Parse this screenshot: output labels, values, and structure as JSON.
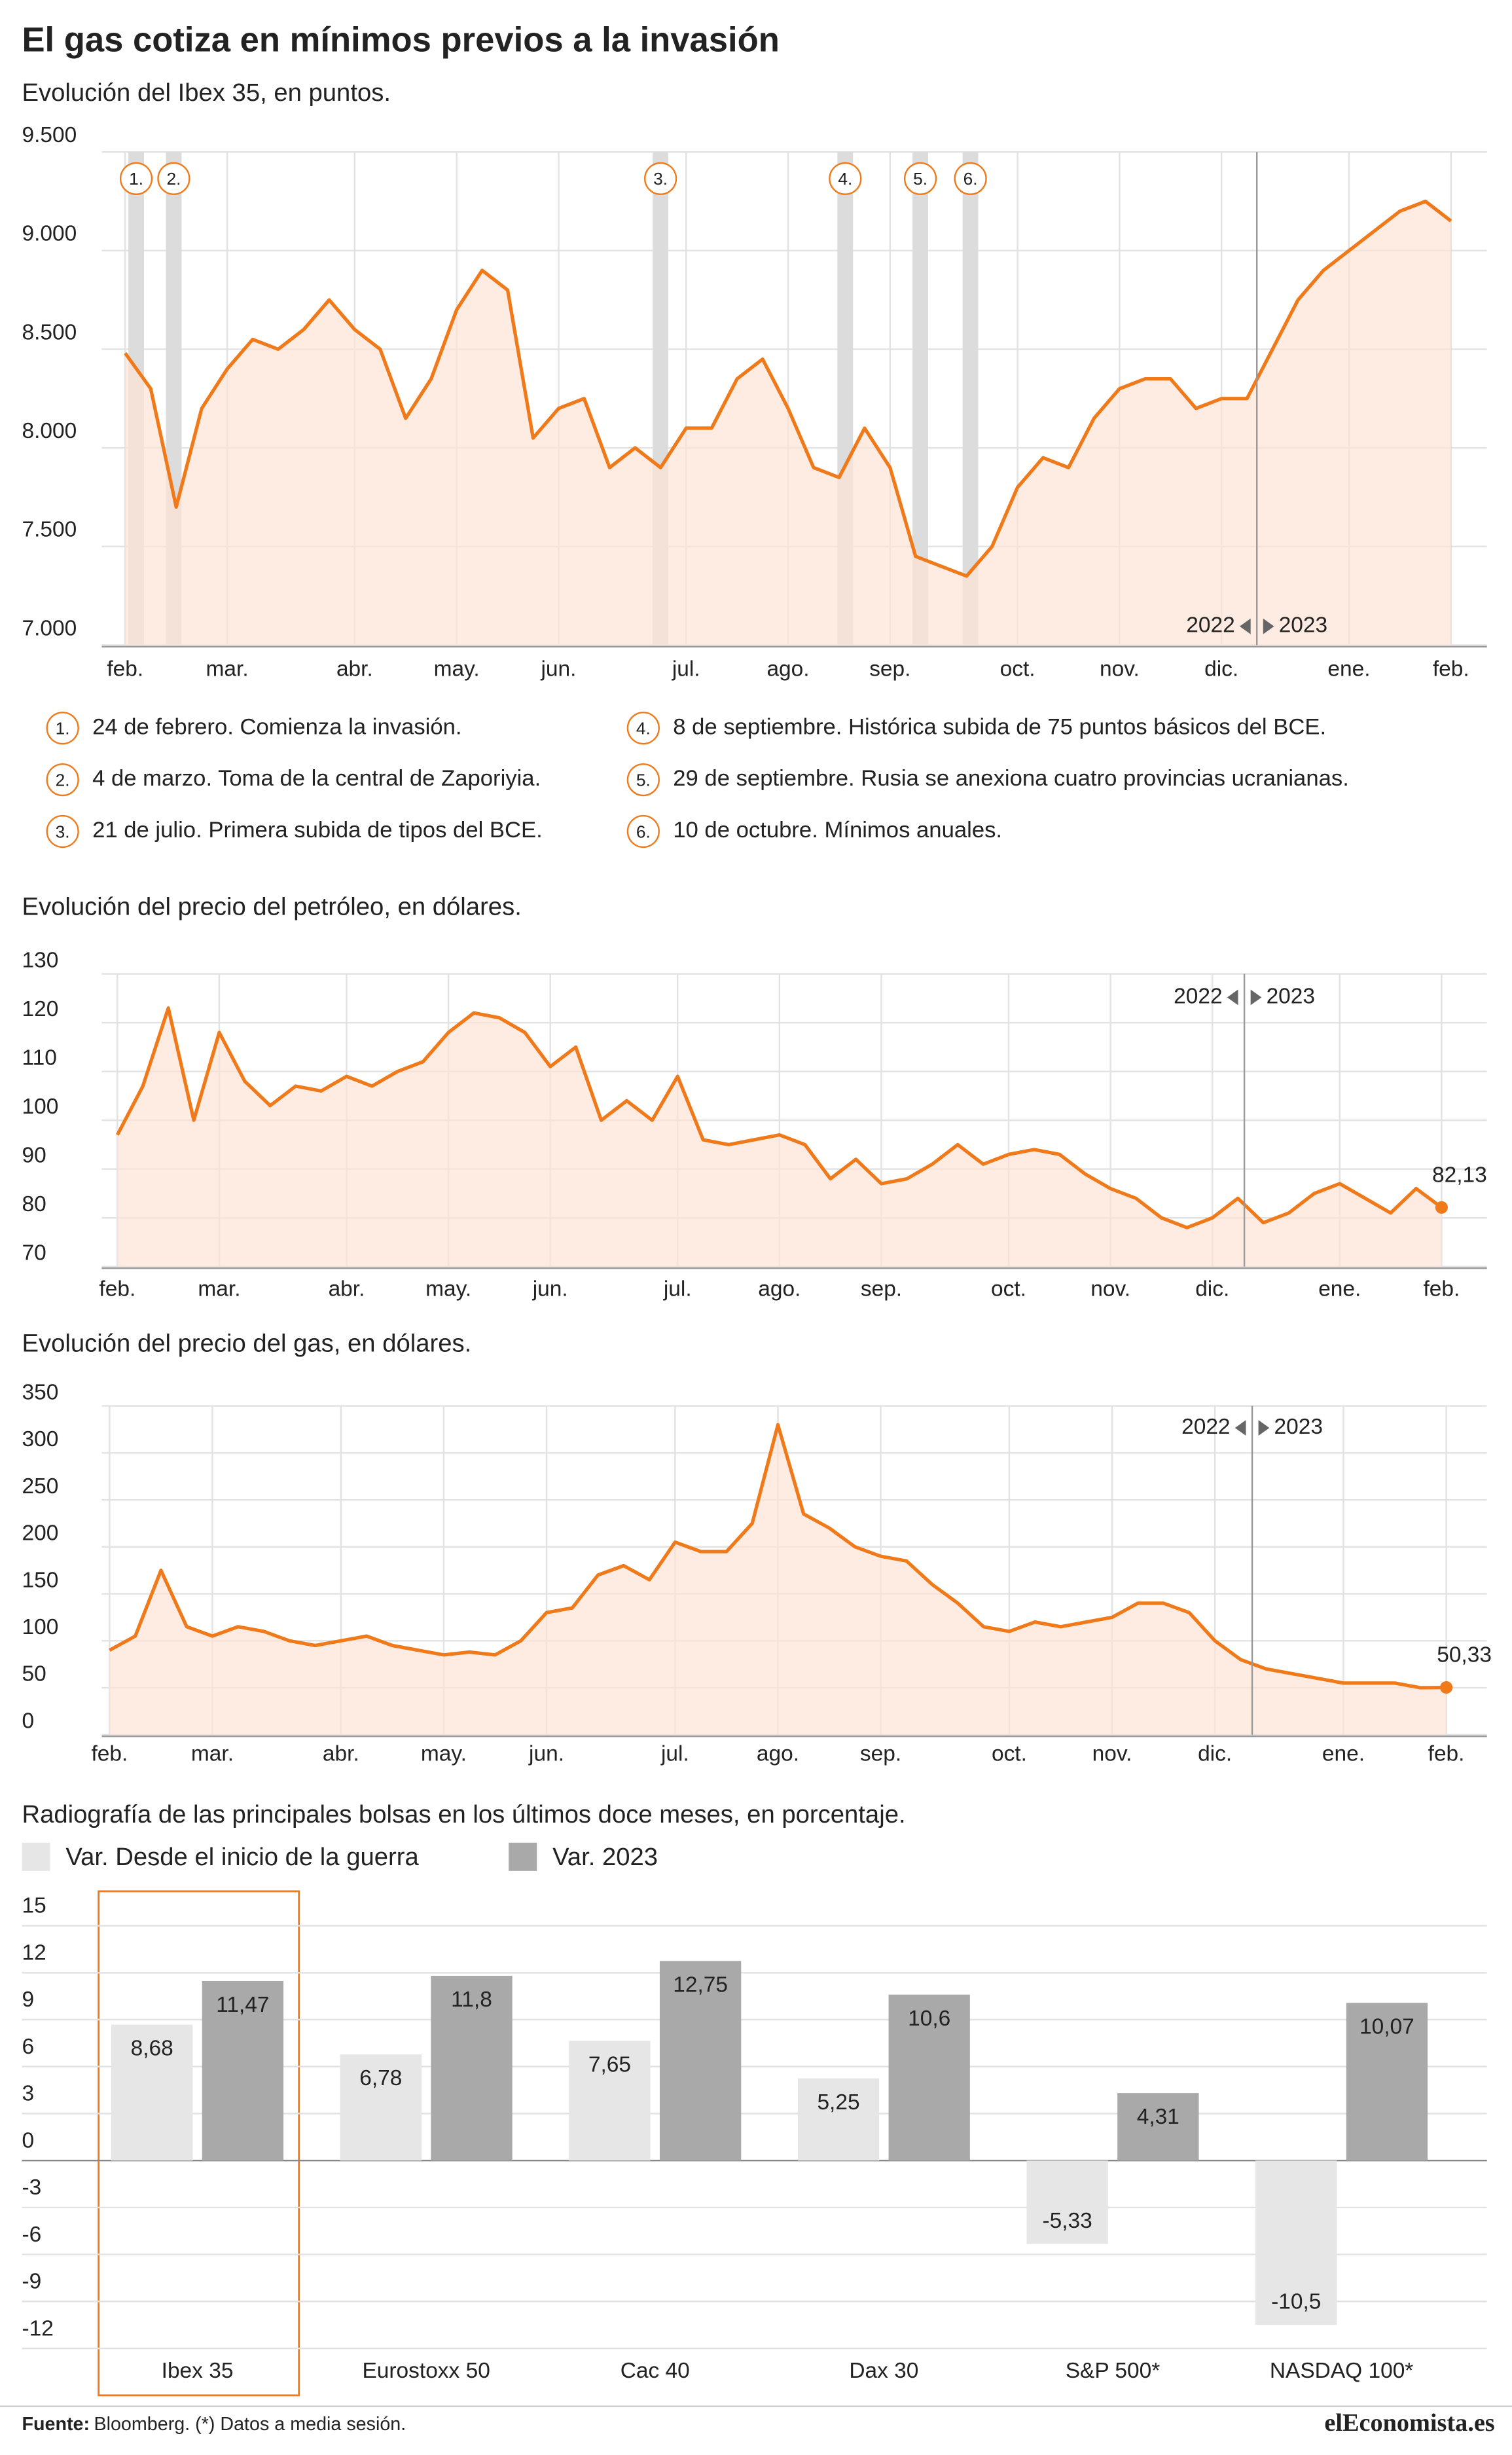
{
  "title": "El gas cotiza en mínimos previos a la invasión",
  "events": [
    {
      "label": "1.",
      "text": "24 de febrero. Comienza la invasión."
    },
    {
      "label": "2.",
      "text": "4 de marzo. Toma de la central de Zaporiyia."
    },
    {
      "label": "3.",
      "text": "21 de julio. Primera subida de tipos del BCE."
    },
    {
      "label": "4.",
      "text": "8 de septiembre. Histórica subida de 75 puntos básicos del BCE."
    },
    {
      "label": "5.",
      "text": "29 de septiembre. Rusia se anexiona cuatro provincias ucranianas."
    },
    {
      "label": "6.",
      "text": "10 de octubre. Mínimos anuales."
    }
  ],
  "source_label": "Fuente:",
  "source": "Bloomberg. (*) Datos a media sesión.",
  "logo": "elEconomista.es",
  "chart_data": [
    {
      "type": "line",
      "title": "Evolución del Ibex 35, en puntos.",
      "color": "#f07a1a",
      "fill": "#fde3d6",
      "period_labels": [
        "2022",
        "2023"
      ],
      "categories": [
        "feb.",
        null,
        null,
        null,
        "mar.",
        null,
        null,
        null,
        null,
        "abr.",
        null,
        null,
        null,
        "may.",
        null,
        null,
        null,
        "jun.",
        null,
        null,
        null,
        null,
        "jul.",
        null,
        null,
        null,
        "ago.",
        null,
        null,
        null,
        "sep.",
        null,
        null,
        null,
        null,
        "oct.",
        null,
        null,
        null,
        "nov.",
        null,
        null,
        null,
        "dic.",
        null,
        null,
        null,
        null,
        "ene.",
        null,
        null,
        null,
        "feb."
      ],
      "values": [
        8480,
        8300,
        7700,
        8200,
        8400,
        8550,
        8500,
        8600,
        8750,
        8600,
        8500,
        8150,
        8350,
        8700,
        8900,
        8800,
        8050,
        8200,
        8250,
        7900,
        8000,
        7900,
        8100,
        8100,
        8350,
        8450,
        8200,
        7900,
        7850,
        8100,
        7900,
        7450,
        7400,
        7350,
        7500,
        7800,
        7950,
        7900,
        8150,
        8300,
        8350,
        8350,
        8200,
        8250,
        8250,
        8500,
        8750,
        8900,
        9000,
        9100,
        9200,
        9250,
        9150
      ],
      "ylim": [
        7000,
        9500
      ],
      "yticks": [
        {
          "value": 9500,
          "label": "9.500"
        },
        {
          "value": 9000,
          "label": "9.000"
        },
        {
          "value": 8500,
          "label": "8.500"
        },
        {
          "value": 8000,
          "label": "8.000"
        },
        {
          "value": 7500,
          "label": "7.500"
        },
        {
          "value": 7000,
          "label": "7.000"
        }
      ],
      "grid": true
    },
    {
      "type": "line",
      "title": "Evolución del precio del petróleo, en dólares.",
      "color": "#f07a1a",
      "fill": "#fde3d6",
      "period_labels": [
        "2022",
        "2023"
      ],
      "categories": [
        "feb.",
        null,
        null,
        null,
        "mar.",
        null,
        null,
        null,
        null,
        "abr.",
        null,
        null,
        null,
        "may.",
        null,
        null,
        null,
        "jun.",
        null,
        null,
        null,
        null,
        "jul.",
        null,
        null,
        null,
        "ago.",
        null,
        null,
        null,
        "sep.",
        null,
        null,
        null,
        null,
        "oct.",
        null,
        null,
        null,
        "nov.",
        null,
        null,
        null,
        "dic.",
        null,
        null,
        null,
        null,
        "ene.",
        null,
        null,
        null,
        "feb."
      ],
      "values": [
        97,
        107,
        123,
        100,
        118,
        108,
        103,
        107,
        106,
        109,
        107,
        110,
        112,
        118,
        122,
        121,
        118,
        111,
        115,
        100,
        104,
        100,
        109,
        96,
        95,
        96,
        97,
        95,
        88,
        92,
        87,
        88,
        91,
        95,
        91,
        93,
        94,
        93,
        89,
        86,
        84,
        80,
        78,
        80,
        84,
        79,
        81,
        85,
        87,
        84,
        81,
        86,
        82.13
      ],
      "value_labels": [
        null,
        null,
        null,
        null,
        null,
        null,
        null,
        null,
        null,
        null,
        null,
        null,
        null,
        null,
        null,
        null,
        null,
        null,
        null,
        null,
        null,
        null,
        null,
        null,
        null,
        null,
        null,
        null,
        null,
        null,
        null,
        null,
        null,
        null,
        null,
        null,
        null,
        null,
        null,
        null,
        null,
        null,
        null,
        null,
        null,
        null,
        null,
        null,
        null,
        null,
        null,
        null,
        "82,13"
      ],
      "ylim": [
        70,
        130
      ],
      "yticks": [
        130,
        120,
        110,
        100,
        90,
        80,
        70
      ],
      "grid": true
    },
    {
      "type": "line",
      "title": "Evolución del precio del gas, en dólares.",
      "color": "#f07a1a",
      "fill": "#fde3d6",
      "period_labels": [
        "2022",
        "2023"
      ],
      "categories": [
        "feb.",
        null,
        null,
        null,
        "mar.",
        null,
        null,
        null,
        null,
        "abr.",
        null,
        null,
        null,
        "may.",
        null,
        null,
        null,
        "jun.",
        null,
        null,
        null,
        null,
        "jul.",
        null,
        null,
        null,
        "ago.",
        null,
        null,
        null,
        "sep.",
        null,
        null,
        null,
        null,
        "oct.",
        null,
        null,
        null,
        "nov.",
        null,
        null,
        null,
        "dic.",
        null,
        null,
        null,
        null,
        "ene.",
        null,
        null,
        null,
        "feb."
      ],
      "values": [
        90,
        105,
        175,
        115,
        105,
        115,
        110,
        100,
        95,
        100,
        105,
        95,
        90,
        85,
        88,
        85,
        100,
        130,
        135,
        170,
        180,
        165,
        205,
        195,
        195,
        225,
        330,
        235,
        220,
        200,
        190,
        185,
        160,
        140,
        115,
        110,
        120,
        115,
        120,
        125,
        140,
        140,
        130,
        100,
        80,
        70,
        65,
        60,
        55,
        55,
        55,
        50,
        50.33
      ],
      "value_labels": [
        null,
        null,
        null,
        null,
        null,
        null,
        null,
        null,
        null,
        null,
        null,
        null,
        null,
        null,
        null,
        null,
        null,
        null,
        null,
        null,
        null,
        null,
        null,
        null,
        null,
        null,
        null,
        null,
        null,
        null,
        null,
        null,
        null,
        null,
        null,
        null,
        null,
        null,
        null,
        null,
        null,
        null,
        null,
        null,
        null,
        null,
        null,
        null,
        null,
        null,
        null,
        null,
        "50,33"
      ],
      "ylim": [
        0,
        350
      ],
      "yticks": [
        350,
        300,
        250,
        200,
        150,
        100,
        50,
        0
      ],
      "grid": true
    },
    {
      "type": "bar",
      "title": "Radiografía de las principales bolsas en los últimos doce meses, en porcentaje.",
      "categories": [
        "Ibex 35",
        "Eurostoxx 50",
        "Cac 40",
        "Dax 30",
        "S&P 500*",
        "NASDAQ 100*"
      ],
      "series": [
        {
          "name": "Var. Desde el inicio de la guerra",
          "color": "#e6e6e6",
          "values": [
            8.68,
            6.78,
            7.65,
            5.25,
            -5.33,
            -10.5
          ],
          "value_labels": [
            "8,68",
            "6,78",
            "7,65",
            "5,25",
            "-5,33",
            "-10,5"
          ]
        },
        {
          "name": "Var. 2023",
          "color": "#a9a9a9",
          "values": [
            11.47,
            11.8,
            12.75,
            10.6,
            4.31,
            10.07
          ],
          "value_labels": [
            "11,47",
            "11,8",
            "12,75",
            "10,6",
            "4,31",
            "10,07"
          ]
        }
      ],
      "ylim": [
        -15,
        17
      ],
      "yticks": [
        15,
        12,
        9,
        6,
        3,
        0,
        -3,
        -6,
        -9,
        -12
      ],
      "grid": true
    }
  ]
}
